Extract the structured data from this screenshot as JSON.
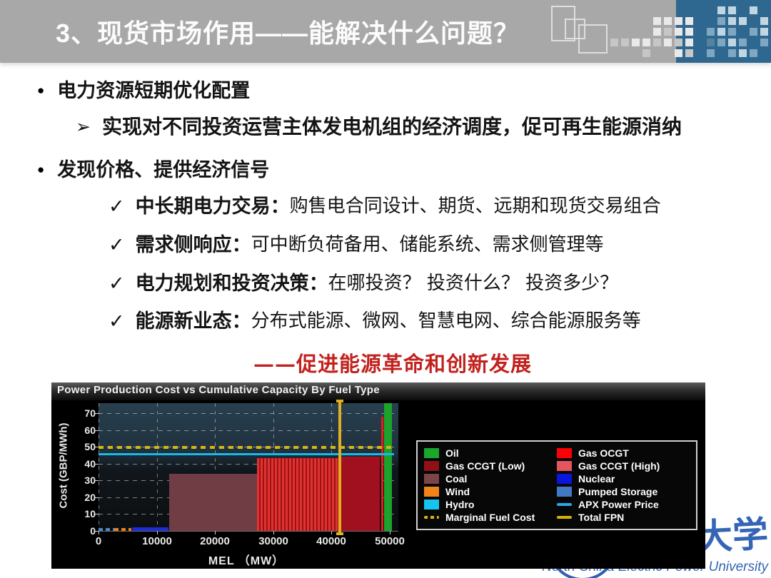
{
  "slide_title": "3、现货市场作用——能解决什么问题？",
  "icons": {
    "bullet": "●",
    "arrow": "➢",
    "check": "✓"
  },
  "bullet1": "电力资源短期优化配置",
  "sub1": "实现对不同投资运营主体发电机组的经济调度，促可再生能源消纳",
  "bullet2": "发现价格、提供经济信号",
  "checks": [
    {
      "lead": "中长期电力交易：",
      "rest": "购售电合同设计、期货、远期和现货交易组合"
    },
    {
      "lead": "需求侧响应：",
      "rest": "可中断负荷备用、储能系统、需求侧管理等"
    },
    {
      "lead": "电力规划和投资决策：",
      "rest": "在哪投资？ 投资什么？ 投资多少？"
    },
    {
      "lead": "能源新业态：",
      "rest": "分布式能源、微网、智慧电网、综合能源服务等"
    }
  ],
  "red_note": "——促进能源革命和创新发展",
  "watermark": {
    "cn": "华北电力大学",
    "en": "North China Electric Power University",
    "color": "#3565b5"
  },
  "colors": {
    "header_bg": "#a8a8a8",
    "header_accent": "#2e678f",
    "title_text": "#fcfcfc",
    "body_text": "#141414",
    "red_accent": "#c2221e",
    "chart_bg": "#000000"
  },
  "chart_data": {
    "type": "bar",
    "title": "Power Production Cost vs Cumulative Capacity By Fuel Type",
    "xlabel": "MEL （MW）",
    "ylabel": "Cost (GBP/MWh)",
    "xlim": [
      0,
      51500
    ],
    "ylim": [
      0,
      76
    ],
    "xticks": [
      0,
      10000,
      20000,
      30000,
      40000,
      50000
    ],
    "yticks": [
      0,
      10,
      20,
      30,
      40,
      50,
      60,
      70
    ],
    "grid": true,
    "legend_position": "inside-right",
    "merit_order_segments": [
      {
        "fuel": "Pumped Storage",
        "x0": 0,
        "x1": 2700,
        "cost": 1.5,
        "color": "#4b87c9",
        "pattern": "dashed"
      },
      {
        "fuel": "Wind",
        "x0": 2700,
        "x1": 5700,
        "cost": 1.5,
        "color": "#ef7f16",
        "pattern": "dashed"
      },
      {
        "fuel": "Nuclear",
        "x0": 5800,
        "x1": 12100,
        "cost": 2,
        "color": "#1c2cd8",
        "pattern": "solid"
      },
      {
        "fuel": "Coal",
        "x0": 12100,
        "x1": 27200,
        "cost": 34,
        "color": "#713d44",
        "pattern": "solid"
      },
      {
        "fuel": "Gas CCGT (High)",
        "x0": 27200,
        "x1": 41400,
        "cost": 43.5,
        "color": "#d22f2f",
        "pattern": "striped"
      },
      {
        "fuel": "Gas CCGT (Low)",
        "x0": 41400,
        "x1": 48300,
        "cost": 44,
        "color": "#a1101f",
        "pattern": "solid"
      },
      {
        "fuel": "Gas OCGT",
        "x0": 48500,
        "x1": 48900,
        "cost": 68,
        "color": "#ef1616",
        "pattern": "solid"
      },
      {
        "fuel": "Oil",
        "x0": 49000,
        "x1": 50300,
        "cost": 76,
        "color": "#1ca32b",
        "pattern": "solid"
      }
    ],
    "hlines": [
      {
        "name": "Marginal Fuel Cost",
        "y": 49.5,
        "color": "#d8b50f",
        "style": "dashed"
      },
      {
        "name": "APX Power Price",
        "y": 46,
        "color": "#19b9ea",
        "style": "solid"
      }
    ],
    "vlines": [
      {
        "name": "Total FPN",
        "x": 41500,
        "color": "#e0b022",
        "style": "solid"
      }
    ],
    "legend": {
      "col1": [
        {
          "label": "Oil",
          "color": "#19a72e",
          "swatch": "box"
        },
        {
          "label": "Gas CCGT (Low)",
          "color": "#8e1118",
          "swatch": "box"
        },
        {
          "label": "Coal",
          "color": "#7a4449",
          "swatch": "box"
        },
        {
          "label": "Wind",
          "color": "#f08418",
          "swatch": "box"
        },
        {
          "label": "Hydro",
          "color": "#15c5ef",
          "swatch": "box"
        },
        {
          "label": "Marginal Fuel Cost",
          "color": "#d8b50f",
          "swatch": "dashed-line"
        }
      ],
      "col2": [
        {
          "label": "Gas OCGT",
          "color": "#fb0007",
          "swatch": "box"
        },
        {
          "label": "Gas CCGT (High)",
          "color": "#e4555e",
          "swatch": "box"
        },
        {
          "label": "Nuclear",
          "color": "#0b16dd",
          "swatch": "box"
        },
        {
          "label": "Pumped Storage",
          "color": "#4179c4",
          "swatch": "box"
        },
        {
          "label": "APX Power Price",
          "color": "#28a8e8",
          "swatch": "line"
        },
        {
          "label": "Total FPN",
          "color": "#d4b400",
          "swatch": "line"
        }
      ]
    }
  }
}
